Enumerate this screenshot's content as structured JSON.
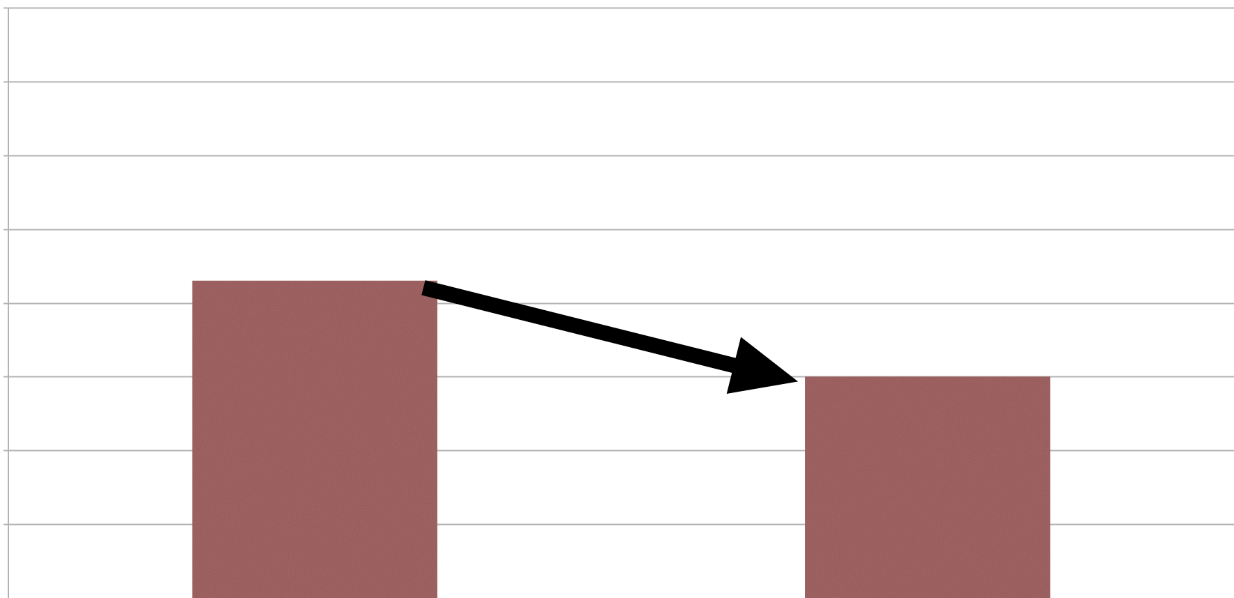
{
  "chart_data": {
    "type": "bar",
    "categories": [
      "",
      ""
    ],
    "values": [
      4.3,
      3.0
    ],
    "ylim": [
      0,
      8
    ],
    "y_step": 1,
    "grid": true,
    "legend": "none",
    "title": "",
    "xlabel": "",
    "ylabel": "",
    "annotations": [
      {
        "type": "arrow",
        "from_category": 0,
        "to_category": 1,
        "meaning": "decrease"
      }
    ]
  },
  "colors": {
    "bar": "#9a5757",
    "grid": "#b3b3b3",
    "axis": "#b3b3b3",
    "arrow": "#000000",
    "background": "#ffffff"
  }
}
